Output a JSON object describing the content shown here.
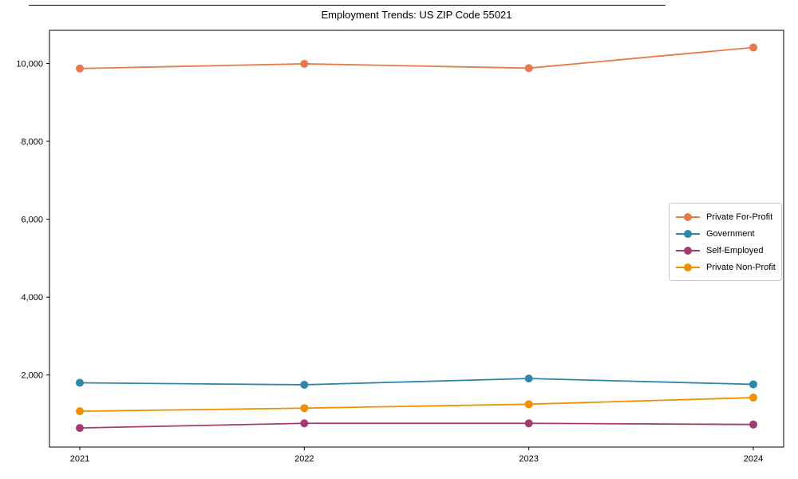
{
  "top_divider": true,
  "chart_data": {
    "type": "line",
    "title": "Employment Trends: US ZIP Code 55021",
    "xlabel": "",
    "ylabel": "",
    "x": [
      2021,
      2022,
      2023,
      2024
    ],
    "x_tick_labels": [
      "2021",
      "2022",
      "2023",
      "2024"
    ],
    "series": [
      {
        "name": "Private For-Profit",
        "color": "#E8794A",
        "values": [
          9870,
          9990,
          9880,
          10410
        ]
      },
      {
        "name": "Government",
        "color": "#2E86AB",
        "values": [
          1800,
          1750,
          1910,
          1760
        ]
      },
      {
        "name": "Self-Employed",
        "color": "#A23B72",
        "values": [
          640,
          760,
          760,
          730
        ]
      },
      {
        "name": "Private Non-Profit",
        "color": "#F18F01",
        "values": [
          1070,
          1150,
          1250,
          1420
        ]
      }
    ],
    "yticks": [
      {
        "value": 2000,
        "label": "2,000"
      },
      {
        "value": 4000,
        "label": "4,000"
      },
      {
        "value": 6000,
        "label": "6,000"
      },
      {
        "value": 8000,
        "label": "8,000"
      },
      {
        "value": 10000,
        "label": "10,000"
      }
    ],
    "xlim": [
      2020.865,
      2024.135
    ],
    "ylim": [
      150,
      10850
    ],
    "grid": false,
    "legend_position": "center-right",
    "axis_color": "#000000",
    "background_color": "#ffffff"
  }
}
